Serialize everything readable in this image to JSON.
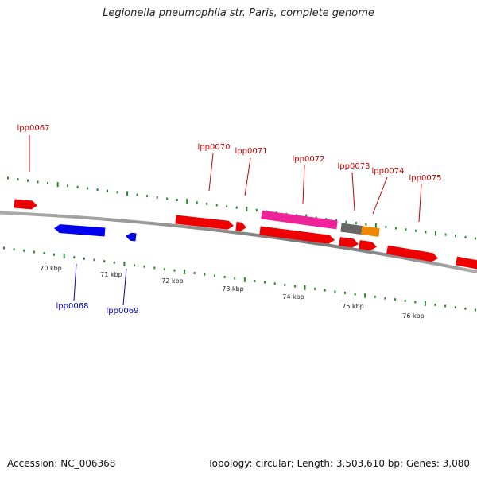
{
  "title": "Legionella pneumophila str. Paris, complete genome",
  "colors": {
    "forward_gene": "#ee0000",
    "reverse_gene": "#0000ee",
    "magenta_feature": "#ee2299",
    "gray_feature": "#666666",
    "orange_feature": "#ee8800",
    "backbone": "#888888",
    "tick": "#2a8a2a",
    "forward_label": "#cc0000",
    "reverse_label": "#0000cc"
  },
  "scale_labels": [
    "70 kbp",
    "71 kbp",
    "72 kbp",
    "73 kbp",
    "74 kbp",
    "75 kbp",
    "76 kbp"
  ],
  "gene_labels": {
    "forward": [
      "lpp0067",
      "lpp0070",
      "lpp0071",
      "lpp0072",
      "lpp0073",
      "lpp0074",
      "lpp0075"
    ],
    "reverse": [
      "lpp0068",
      "lpp0069"
    ]
  },
  "footer": {
    "accession": "Accession: NC_006368",
    "genome_info": "Topology: circular; Length: 3,503,610 bp; Genes: 3,080"
  }
}
